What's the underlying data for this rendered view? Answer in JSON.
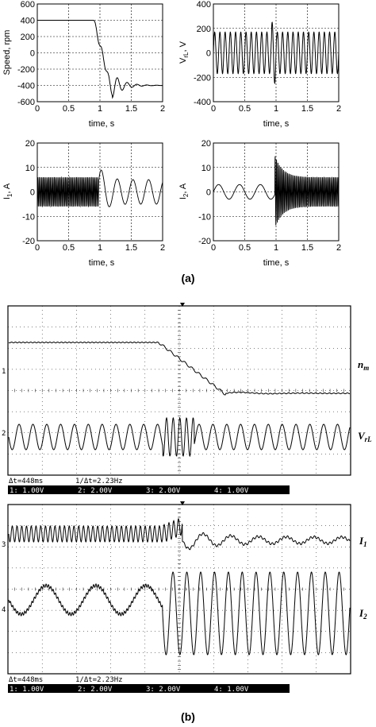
{
  "figure": {
    "label_a": "(a)",
    "label_b": "(b)"
  },
  "chart_data": [
    {
      "type": "line",
      "id": "speed",
      "xlabel": "time, s",
      "ylabel": "Speed, rpm",
      "xlim": [
        0,
        2
      ],
      "ylim": [
        -600,
        600
      ],
      "xticks": [
        "0",
        "0.5",
        "1",
        "1.5",
        "2"
      ],
      "yticks": [
        "600",
        "400",
        "200",
        "0",
        "-200",
        "-400",
        "-600"
      ],
      "grid": true,
      "series": [
        {
          "x": [
            0,
            0.9,
            0.95,
            1.0,
            1.05,
            1.1,
            1.15,
            1.2,
            1.25,
            1.3,
            1.35,
            1.4,
            1.5,
            1.6,
            2.0
          ],
          "values": [
            400,
            400,
            300,
            100,
            -100,
            -300,
            -450,
            -560,
            -380,
            -480,
            -400,
            -430,
            -400,
            -400,
            -400
          ]
        }
      ]
    },
    {
      "type": "line",
      "id": "vrl",
      "xlabel": "time, s",
      "ylabel": "V_rL, V",
      "xlim": [
        0,
        2
      ],
      "ylim": [
        -400,
        400
      ],
      "xticks": [
        "0",
        "0.5",
        "1",
        "1.5",
        "2"
      ],
      "yticks": [
        "400",
        "200",
        "0",
        "-200",
        "-400"
      ],
      "grid": true,
      "series": [
        {
          "name": "",
          "kind": "oscillation",
          "amplitude": 170,
          "burst_amplitude": 250,
          "burst_at": 0.97
        }
      ]
    },
    {
      "type": "line",
      "id": "i1",
      "xlabel": "time, s",
      "ylabel": "I_1, A",
      "xlim": [
        0,
        2
      ],
      "ylim": [
        -20,
        20
      ],
      "xticks": [
        "0",
        "0.5",
        "1",
        "1.5",
        "2"
      ],
      "yticks": [
        "20",
        "10",
        "0",
        "-10",
        "-20"
      ],
      "grid": true,
      "series": [
        {
          "name": "",
          "kind": "oscillation",
          "amplitude_before": 6,
          "amplitude_after": 5,
          "peak": 11,
          "switch_at": 0.98
        }
      ]
    },
    {
      "type": "line",
      "id": "i2",
      "xlabel": "time, s",
      "ylabel": "I_2, A",
      "xlim": [
        0,
        2
      ],
      "ylim": [
        -20,
        20
      ],
      "xticks": [
        "0",
        "0.5",
        "1",
        "1.5",
        "2"
      ],
      "yticks": [
        "20",
        "10",
        "0",
        "-10",
        "-20"
      ],
      "grid": true,
      "series": [
        {
          "name": "",
          "kind": "oscillation",
          "amplitude_before": 3,
          "amplitude_after": 6,
          "peak": 15,
          "switch_at": 0.98
        }
      ]
    }
  ],
  "scope1": {
    "channel_markers": [
      "1",
      "2"
    ],
    "labels": [
      "n_m",
      "V_rL"
    ],
    "delta_t": "Δt=448ms",
    "inv_delta_t": "1/Δt=2.23Hz",
    "channels": [
      "1: 1.00V",
      "2: 2.00V",
      "3: 2.00V",
      "4: 1.00V"
    ]
  },
  "scope2": {
    "channel_markers": [
      "3",
      "4"
    ],
    "labels": [
      "I_1",
      "I_2"
    ],
    "delta_t": "Δt=448ms",
    "inv_delta_t": "1/Δt=2.23Hz",
    "channels": [
      "1: 1.00V",
      "2: 2.00V",
      "3: 2.00V",
      "4: 1.00V"
    ]
  }
}
